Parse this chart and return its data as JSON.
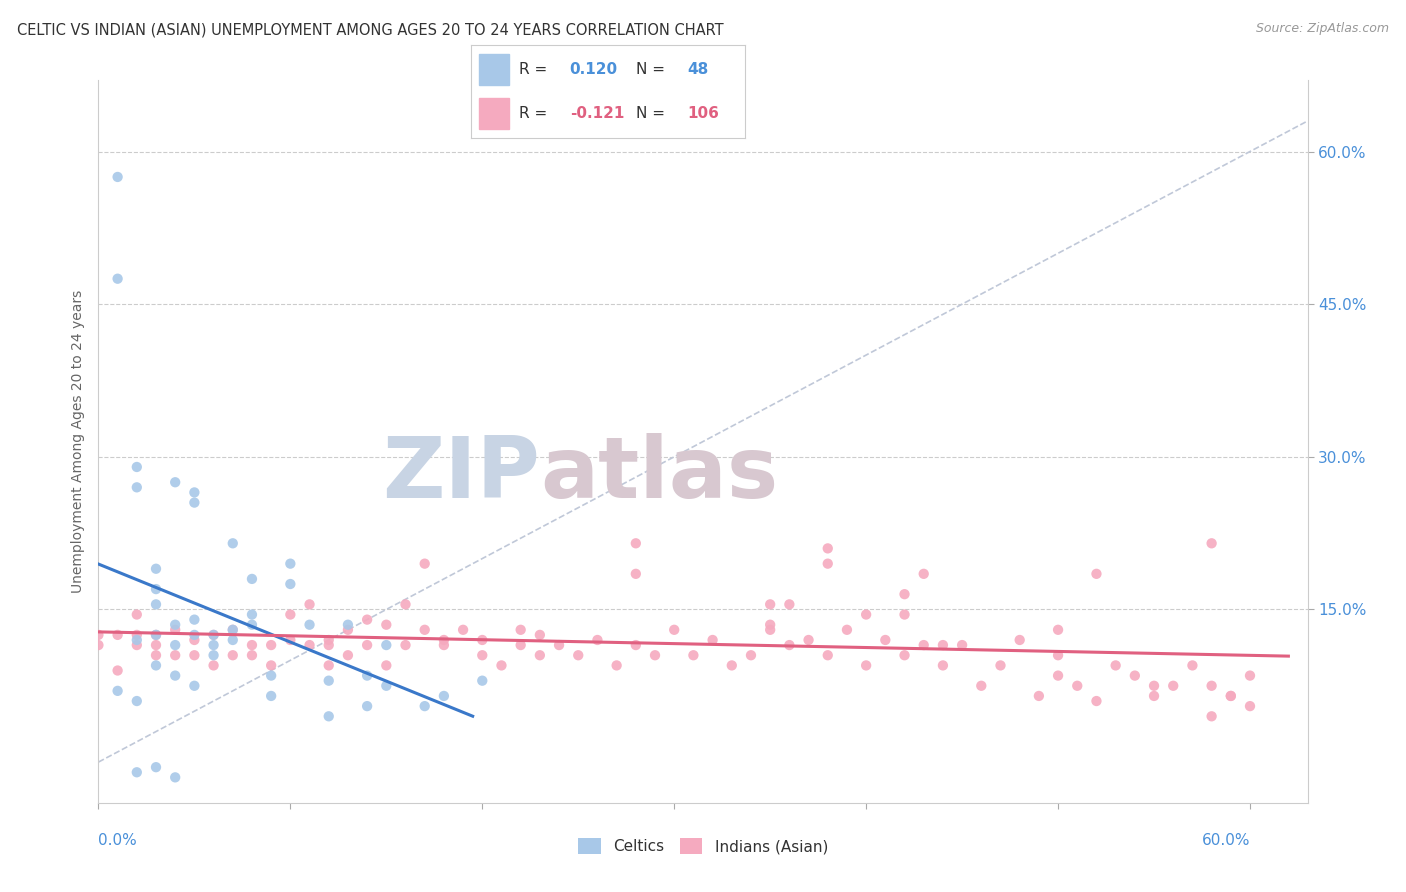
{
  "title": "CELTIC VS INDIAN (ASIAN) UNEMPLOYMENT AMONG AGES 20 TO 24 YEARS CORRELATION CHART",
  "source": "Source: ZipAtlas.com",
  "ylabel": "Unemployment Among Ages 20 to 24 years",
  "yticks_right": [
    "15.0%",
    "30.0%",
    "45.0%",
    "60.0%"
  ],
  "yticks_right_vals": [
    0.15,
    0.3,
    0.45,
    0.6
  ],
  "xticks": [
    0.0,
    0.1,
    0.2,
    0.3,
    0.4,
    0.5,
    0.6
  ],
  "xlim": [
    0.0,
    0.63
  ],
  "ylim": [
    -0.04,
    0.67
  ],
  "R_celtics": 0.12,
  "N_celtics": 48,
  "R_indians": -0.121,
  "N_indians": 106,
  "celtics_color": "#a8c8e8",
  "indians_color": "#f5aabf",
  "celtics_line_color": "#3a78c9",
  "indians_line_color": "#e06080",
  "diagonal_color": "#c0c8d8",
  "watermark_zip_color": "#c8d4e4",
  "watermark_atlas_color": "#d8c8d0",
  "legend_label_celtics": "Celtics",
  "legend_label_indians": "Indians (Asian)",
  "title_fontsize": 10.5,
  "source_fontsize": 9,
  "celtics_x": [
    0.01,
    0.01,
    0.02,
    0.02,
    0.02,
    0.03,
    0.03,
    0.03,
    0.03,
    0.04,
    0.04,
    0.04,
    0.05,
    0.05,
    0.05,
    0.05,
    0.06,
    0.06,
    0.06,
    0.07,
    0.07,
    0.07,
    0.08,
    0.08,
    0.08,
    0.09,
    0.09,
    0.1,
    0.1,
    0.11,
    0.12,
    0.12,
    0.13,
    0.14,
    0.14,
    0.15,
    0.15,
    0.17,
    0.18,
    0.2,
    0.01,
    0.02,
    0.03,
    0.04,
    0.05,
    0.02,
    0.03,
    0.04
  ],
  "celtics_y": [
    0.575,
    0.475,
    0.12,
    0.27,
    0.29,
    0.19,
    0.17,
    0.155,
    0.125,
    0.135,
    0.115,
    0.275,
    0.14,
    0.125,
    0.265,
    0.255,
    0.105,
    0.115,
    0.125,
    0.13,
    0.12,
    0.215,
    0.145,
    0.18,
    0.135,
    0.085,
    0.065,
    0.195,
    0.175,
    0.135,
    0.045,
    0.08,
    0.135,
    0.055,
    0.085,
    0.115,
    0.075,
    0.055,
    0.065,
    0.08,
    0.07,
    0.06,
    0.095,
    0.085,
    0.075,
    -0.01,
    -0.005,
    -0.015
  ],
  "indians_x": [
    0.0,
    0.0,
    0.01,
    0.01,
    0.02,
    0.02,
    0.02,
    0.03,
    0.03,
    0.03,
    0.04,
    0.04,
    0.05,
    0.05,
    0.06,
    0.06,
    0.07,
    0.07,
    0.08,
    0.08,
    0.09,
    0.09,
    0.1,
    0.1,
    0.11,
    0.11,
    0.12,
    0.12,
    0.12,
    0.13,
    0.13,
    0.14,
    0.14,
    0.15,
    0.15,
    0.16,
    0.16,
    0.17,
    0.17,
    0.18,
    0.18,
    0.19,
    0.2,
    0.2,
    0.21,
    0.22,
    0.22,
    0.23,
    0.23,
    0.24,
    0.25,
    0.26,
    0.27,
    0.28,
    0.28,
    0.29,
    0.3,
    0.31,
    0.32,
    0.33,
    0.34,
    0.35,
    0.35,
    0.36,
    0.36,
    0.37,
    0.38,
    0.38,
    0.39,
    0.4,
    0.41,
    0.42,
    0.42,
    0.43,
    0.44,
    0.45,
    0.46,
    0.47,
    0.48,
    0.49,
    0.5,
    0.5,
    0.51,
    0.52,
    0.53,
    0.54,
    0.55,
    0.56,
    0.57,
    0.58,
    0.58,
    0.59,
    0.6,
    0.6,
    0.38,
    0.4,
    0.43,
    0.44,
    0.5,
    0.52,
    0.58,
    0.59,
    0.28,
    0.35,
    0.42,
    0.55
  ],
  "indians_y": [
    0.125,
    0.115,
    0.09,
    0.125,
    0.125,
    0.115,
    0.145,
    0.105,
    0.125,
    0.115,
    0.105,
    0.13,
    0.12,
    0.105,
    0.125,
    0.095,
    0.105,
    0.13,
    0.105,
    0.115,
    0.095,
    0.115,
    0.145,
    0.12,
    0.155,
    0.115,
    0.12,
    0.095,
    0.115,
    0.13,
    0.105,
    0.14,
    0.115,
    0.135,
    0.095,
    0.155,
    0.115,
    0.195,
    0.13,
    0.12,
    0.115,
    0.13,
    0.105,
    0.12,
    0.095,
    0.115,
    0.13,
    0.105,
    0.125,
    0.115,
    0.105,
    0.12,
    0.095,
    0.115,
    0.185,
    0.105,
    0.13,
    0.105,
    0.12,
    0.095,
    0.105,
    0.135,
    0.13,
    0.155,
    0.115,
    0.12,
    0.105,
    0.195,
    0.13,
    0.095,
    0.12,
    0.105,
    0.145,
    0.115,
    0.095,
    0.115,
    0.075,
    0.095,
    0.12,
    0.065,
    0.085,
    0.105,
    0.075,
    0.06,
    0.095,
    0.085,
    0.065,
    0.075,
    0.095,
    0.045,
    0.075,
    0.065,
    0.055,
    0.085,
    0.21,
    0.145,
    0.185,
    0.115,
    0.13,
    0.185,
    0.215,
    0.065,
    0.215,
    0.155,
    0.165,
    0.075
  ]
}
